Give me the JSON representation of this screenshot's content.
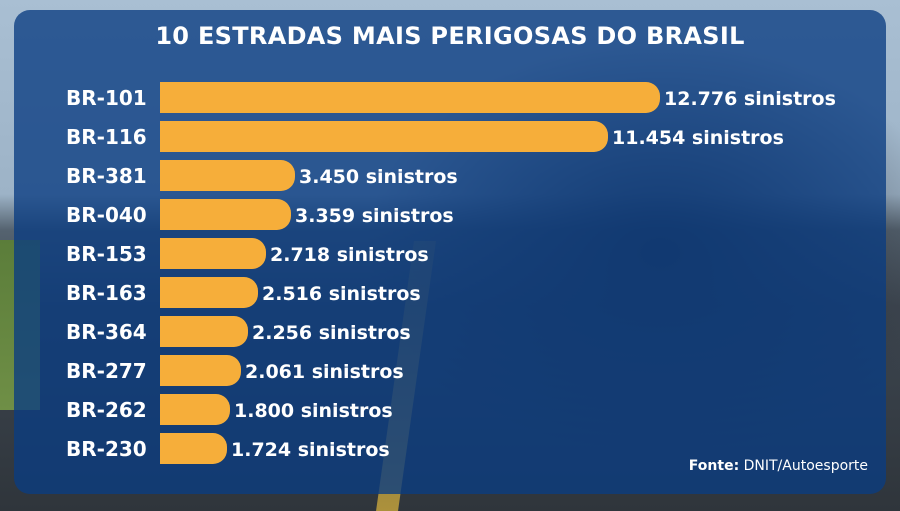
{
  "chart_data": {
    "type": "bar",
    "orientation": "horizontal",
    "title": "10 ESTRADAS MAIS PERIGOSAS DO BRASIL",
    "categories": [
      "BR-101",
      "BR-116",
      "BR-381",
      "BR-040",
      "BR-153",
      "BR-163",
      "BR-364",
      "BR-277",
      "BR-262",
      "BR-230"
    ],
    "values": [
      12776,
      11454,
      3450,
      3359,
      2718,
      2516,
      2256,
      2061,
      1800,
      1724
    ],
    "value_labels": [
      "12.776 sinistros",
      "11.454 sinistros",
      "3.450 sinistros",
      "3.359 sinistros",
      "2.718 sinistros",
      "2.516 sinistros",
      "2.256 sinistros",
      "2.061 sinistros",
      "1.800 sinistros",
      "1.724 sinistros"
    ],
    "bar_color": "#f6ae3a",
    "grid": false
  },
  "source": {
    "label": "Fonte:",
    "text": "DNIT/Autoesporte"
  }
}
